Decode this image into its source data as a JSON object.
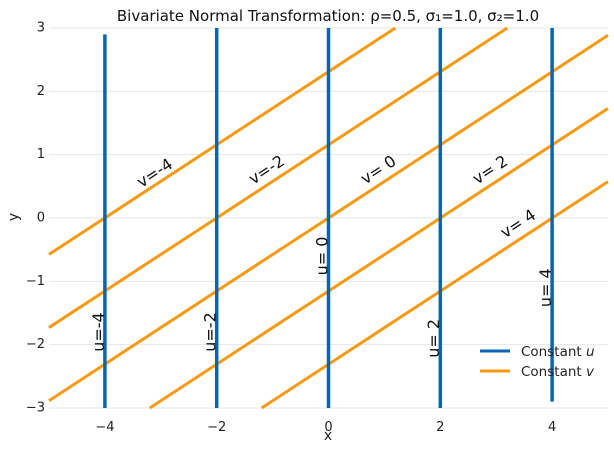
{
  "chart_data": {
    "type": "line",
    "title": "Bivariate Normal Transformation: ρ=0.5, σ₁=1.0, σ₂=1.0",
    "xlabel": "x",
    "ylabel": "y",
    "xlim": [
      -5,
      5
    ],
    "ylim": [
      -3,
      3
    ],
    "x_ticks": [
      -4,
      -2,
      0,
      2,
      4
    ],
    "y_ticks": [
      -3,
      -2,
      -1,
      0,
      1,
      2,
      3
    ],
    "x_tick_labels": [
      "−4",
      "−2",
      "0",
      "2",
      "4"
    ],
    "y_tick_labels": [
      "−3",
      "−2",
      "−1",
      "0",
      "1",
      "2",
      "3"
    ],
    "grid": "horizontal",
    "legend_position": "lower-right",
    "parameters": {
      "rho": 0.5,
      "sigma1": 1.0,
      "sigma2": 1.0
    },
    "constant_u": {
      "name": "Constant u",
      "color": "#0a64b4",
      "lines": [
        {
          "u": -4,
          "x": -4,
          "y_range": [
            -3,
            2.9
          ],
          "label": "u=-4",
          "label_pos": [
            -4.1,
            -1.8
          ]
        },
        {
          "u": -2,
          "x": -2,
          "y_range": [
            -3,
            3
          ],
          "label": "u=-2",
          "label_pos": [
            -2.1,
            -1.8
          ]
        },
        {
          "u": 0,
          "x": 0,
          "y_range": [
            -3,
            3
          ],
          "label": "u= 0",
          "label_pos": [
            -0.1,
            -0.6
          ]
        },
        {
          "u": 2,
          "x": 2,
          "y_range": [
            -3,
            3
          ],
          "label": "u= 2",
          "label_pos": [
            1.9,
            -1.9
          ]
        },
        {
          "u": 4,
          "x": 4,
          "y_range": [
            -2.9,
            3
          ],
          "label": "u= 4",
          "label_pos": [
            3.9,
            -1.1
          ]
        }
      ]
    },
    "constant_v": {
      "name": "Constant v",
      "color": "#f59a14",
      "slope": 0.577,
      "lines": [
        {
          "v": -4,
          "intercept": 2.31,
          "label": "v=-4",
          "label_pos": [
            -3.1,
            0.7
          ]
        },
        {
          "v": -2,
          "intercept": 1.155,
          "label": "v=-2",
          "label_pos": [
            -1.1,
            0.75
          ]
        },
        {
          "v": 0,
          "intercept": 0,
          "label": "v= 0",
          "label_pos": [
            0.9,
            0.75
          ]
        },
        {
          "v": 2,
          "intercept": -1.155,
          "label": "v= 2",
          "label_pos": [
            2.9,
            0.75
          ]
        },
        {
          "v": 4,
          "intercept": -2.31,
          "label": "v= 4",
          "label_pos": [
            3.4,
            -0.1
          ]
        }
      ]
    }
  },
  "legend": {
    "items": [
      {
        "prefix": "Constant ",
        "var": "u",
        "color": "#0a64b4"
      },
      {
        "prefix": "Constant ",
        "var": "v",
        "color": "#f59a14"
      }
    ]
  }
}
